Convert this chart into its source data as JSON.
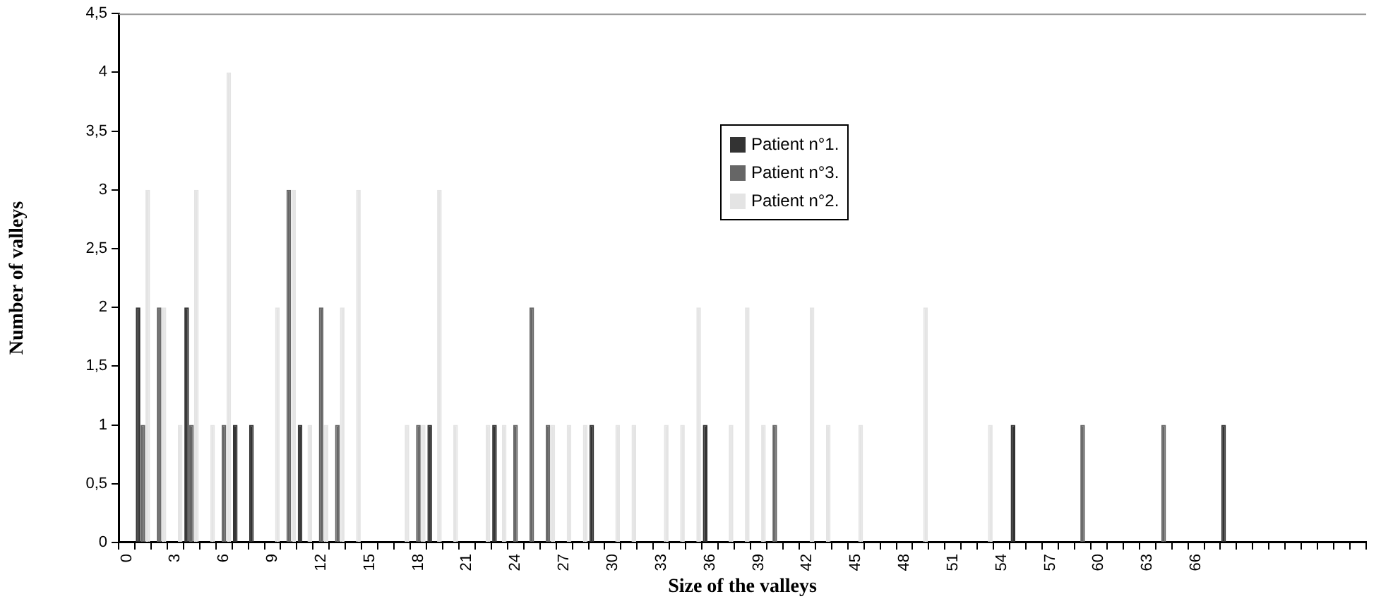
{
  "chart_data": {
    "type": "bar",
    "xlabel": "Size of the valleys",
    "ylabel": "Number of valleys",
    "categories": [
      "0",
      null,
      null,
      "3",
      null,
      null,
      "6",
      null,
      null,
      "9",
      null,
      null,
      "12",
      null,
      null,
      "15",
      null,
      null,
      "18",
      null,
      null,
      "21",
      null,
      null,
      "24",
      null,
      null,
      "27",
      null,
      null,
      "30",
      null,
      null,
      "33",
      null,
      null,
      "36",
      null,
      null,
      "39",
      null,
      null,
      "42",
      null,
      null,
      "45",
      null,
      null,
      "48",
      null,
      null,
      "51",
      null,
      null,
      "54",
      null,
      null,
      "57",
      null,
      null,
      "60",
      null,
      null,
      "63",
      null,
      null,
      "66",
      null,
      null,
      null,
      null,
      null,
      null,
      null,
      null,
      null,
      null
    ],
    "series": [
      {
        "name": "Patient n°1.",
        "color": "#333333",
        "values": [
          0,
          2,
          0,
          0,
          2,
          0,
          0,
          1,
          1,
          0,
          0,
          1,
          0,
          0,
          0,
          0,
          0,
          0,
          0,
          1,
          0,
          0,
          0,
          1,
          0,
          0,
          0,
          0,
          0,
          1,
          0,
          0,
          0,
          0,
          0,
          0,
          1,
          0,
          0,
          0,
          0,
          0,
          0,
          0,
          0,
          0,
          0,
          0,
          0,
          0,
          0,
          0,
          0,
          0,
          0,
          1,
          0,
          0,
          0,
          0,
          0,
          0,
          0,
          0,
          0,
          0,
          0,
          0,
          1,
          0,
          0,
          0,
          0,
          0,
          0,
          0,
          0
        ]
      },
      {
        "name": "Patient n°3.",
        "color": "#666666",
        "values": [
          0,
          1,
          2,
          0,
          1,
          0,
          1,
          0,
          0,
          0,
          3,
          0,
          2,
          1,
          0,
          0,
          0,
          0,
          1,
          0,
          0,
          0,
          0,
          0,
          1,
          2,
          1,
          0,
          0,
          0,
          0,
          0,
          0,
          0,
          0,
          0,
          0,
          0,
          0,
          0,
          1,
          0,
          0,
          0,
          0,
          0,
          0,
          0,
          0,
          0,
          0,
          0,
          0,
          0,
          0,
          0,
          0,
          0,
          0,
          1,
          0,
          0,
          0,
          0,
          1,
          0,
          0,
          0,
          0,
          0,
          0,
          0,
          0,
          0,
          0,
          0,
          0
        ]
      },
      {
        "name": "Patient n°2.",
        "color": "#e4e4e4",
        "values": [
          0,
          3,
          2,
          1,
          3,
          1,
          4,
          0,
          0,
          2,
          3,
          1,
          1,
          2,
          3,
          0,
          0,
          1,
          1,
          3,
          1,
          0,
          1,
          1,
          0,
          0,
          1,
          1,
          1,
          0,
          1,
          1,
          0,
          1,
          1,
          2,
          0,
          1,
          2,
          1,
          0,
          0,
          2,
          1,
          0,
          1,
          0,
          0,
          0,
          2,
          0,
          0,
          0,
          1,
          0,
          0,
          0,
          0,
          0,
          0,
          0,
          0,
          0,
          0,
          0,
          0,
          0,
          0,
          0,
          0,
          0,
          0,
          0,
          0,
          0,
          0,
          0
        ]
      }
    ],
    "ylim": [
      0,
      4.5
    ],
    "yticks": [
      0,
      {
        "value": 0.5,
        "label": "0,5"
      },
      1,
      {
        "value": 1.5,
        "label": "1,5"
      },
      2,
      {
        "value": 2.5,
        "label": "2,5"
      },
      3,
      {
        "value": 3.5,
        "label": "3,5"
      },
      4,
      {
        "value": 4.5,
        "label": "4,5"
      }
    ],
    "grid": false,
    "legend": "top"
  }
}
